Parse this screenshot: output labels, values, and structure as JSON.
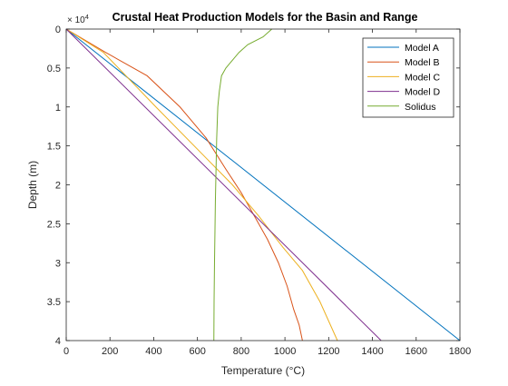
{
  "chart_data": {
    "type": "line",
    "title": "Crustal Heat Production Models for the Basin and Range",
    "xlabel": "Temperature (°C)",
    "ylabel": "Depth (m)",
    "xlim": [
      0,
      1800
    ],
    "ylim": [
      0,
      40000
    ],
    "y_reversed": true,
    "y_exponent_label": "× 10",
    "y_exponent_power": "4",
    "x_ticks": [
      "0",
      "200",
      "400",
      "600",
      "800",
      "1000",
      "1200",
      "1400",
      "1600",
      "1800"
    ],
    "x_tick_values": [
      0,
      200,
      400,
      600,
      800,
      1000,
      1200,
      1400,
      1600,
      1800
    ],
    "y_ticks": [
      "0",
      "0.5",
      "1",
      "1.5",
      "2",
      "2.5",
      "3",
      "3.5",
      "4"
    ],
    "y_tick_values": [
      0,
      5000,
      10000,
      15000,
      20000,
      25000,
      30000,
      35000,
      40000
    ],
    "grid": false,
    "legend_position": "top-right",
    "series": [
      {
        "name": "Model A",
        "color": "#0072BD",
        "points": [
          [
            0,
            0
          ],
          [
            1800,
            40000
          ]
        ]
      },
      {
        "name": "Model B",
        "color": "#D95319",
        "points": [
          [
            0,
            0
          ],
          [
            180,
            3000
          ],
          [
            370,
            6000
          ],
          [
            520,
            10000
          ],
          [
            640,
            14000
          ],
          [
            730,
            18000
          ],
          [
            800,
            21000
          ],
          [
            860,
            24000
          ],
          [
            920,
            27000
          ],
          [
            970,
            30000
          ],
          [
            1010,
            33000
          ],
          [
            1040,
            36000
          ],
          [
            1065,
            38000
          ],
          [
            1080,
            40000
          ]
        ]
      },
      {
        "name": "Model C",
        "color": "#EDB120",
        "points": [
          [
            0,
            0
          ],
          [
            170,
            3000
          ],
          [
            410,
            10000
          ],
          [
            620,
            16000
          ],
          [
            760,
            20000
          ],
          [
            880,
            24000
          ],
          [
            990,
            28000
          ],
          [
            1080,
            31000
          ],
          [
            1160,
            35000
          ],
          [
            1240,
            40000
          ]
        ]
      },
      {
        "name": "Model D",
        "color": "#7E2F8E",
        "points": [
          [
            0,
            0
          ],
          [
            1440,
            40000
          ]
        ]
      },
      {
        "name": "Solidus",
        "color": "#77AC30",
        "points": [
          [
            940,
            0
          ],
          [
            900,
            1000
          ],
          [
            830,
            2000
          ],
          [
            790,
            3000
          ],
          [
            760,
            4000
          ],
          [
            730,
            5000
          ],
          [
            710,
            6000
          ],
          [
            700,
            8000
          ],
          [
            693,
            10000
          ],
          [
            688,
            14000
          ],
          [
            685,
            18000
          ],
          [
            682,
            22000
          ],
          [
            680,
            26000
          ],
          [
            678,
            30000
          ],
          [
            676,
            35000
          ],
          [
            675,
            40000
          ]
        ]
      }
    ]
  }
}
